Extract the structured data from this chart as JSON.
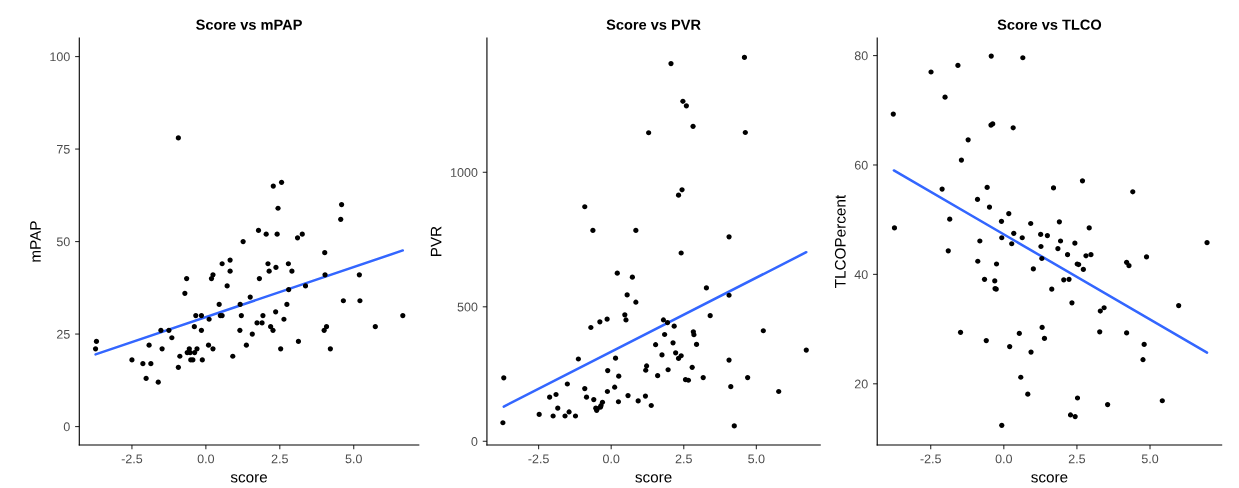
{
  "chart_data": [
    {
      "type": "scatter",
      "title": "Score vs mPAP",
      "xlabel": "score",
      "ylabel": "mPAP",
      "xlim": [
        -4.28,
        7.2
      ],
      "ylim": [
        -5,
        105
      ],
      "xticks": [
        {
          "value": -2.5,
          "label": "-2.5"
        },
        {
          "value": 0,
          "label": "0.0"
        },
        {
          "value": 2.5,
          "label": "2.5"
        },
        {
          "value": 5,
          "label": "5.0"
        }
      ],
      "yticks": [
        0,
        25,
        50,
        75,
        100
      ],
      "grid": false,
      "series": [
        {
          "marker": "circle",
          "color": "#000000",
          "x": [
            -3.73,
            -3.7,
            -2.5,
            -2.13,
            -2.02,
            -1.92,
            -1.86,
            -1.61,
            -1.52,
            -1.48,
            -1.25,
            -1.15,
            -0.93,
            -0.93,
            -0.88,
            -0.71,
            -0.65,
            -0.63,
            -0.56,
            -0.53,
            -0.51,
            -0.44,
            -0.39,
            -0.38,
            -0.34,
            -0.3,
            -0.15,
            -0.15,
            -0.12,
            0.09,
            0.11,
            0.19,
            0.24,
            0.24,
            0.45,
            0.49,
            0.55,
            0.55,
            0.72,
            0.82,
            0.82,
            0.91,
            1.15,
            1.16,
            1.2,
            1.26,
            1.37,
            1.5,
            1.57,
            1.73,
            1.78,
            1.81,
            1.9,
            1.93,
            2.04,
            2.1,
            2.14,
            2.19,
            2.27,
            2.28,
            2.36,
            2.37,
            2.41,
            2.44,
            2.53,
            2.56,
            2.64,
            2.74,
            2.79,
            2.8,
            2.91,
            3.1,
            3.13,
            3.26,
            3.37,
            4.0,
            4.02,
            4.03,
            4.08,
            4.21,
            4.56,
            4.59,
            4.65,
            5.19,
            5.21,
            5.73,
            6.66
          ],
          "values": [
            21,
            23,
            18,
            17,
            13,
            22,
            17,
            12,
            26,
            21,
            26,
            24,
            16,
            78,
            19,
            36,
            40,
            20,
            21,
            20,
            18,
            18,
            27,
            20,
            30,
            21,
            30,
            26,
            18,
            22,
            29,
            40,
            41,
            21,
            33,
            30,
            44,
            30,
            38,
            45,
            42,
            19,
            26,
            33,
            30,
            50,
            22,
            35,
            25,
            28,
            53,
            40,
            28,
            30,
            52,
            44,
            42,
            27,
            26,
            65,
            31,
            43,
            52,
            59,
            21,
            66,
            29,
            33,
            44,
            37,
            42,
            51,
            23,
            52,
            38,
            26,
            47,
            41,
            27,
            21,
            56,
            60,
            34,
            41,
            34,
            27,
            30
          ]
        },
        {
          "type": "line",
          "color": "#3366ff",
          "x": [
            -3.73,
            6.66
          ],
          "values": [
            19.5,
            47.6
          ]
        }
      ]
    },
    {
      "type": "scatter",
      "title": "Score vs PVR",
      "xlabel": "score",
      "ylabel": "PVR",
      "xlim": [
        -4.28,
        7.2
      ],
      "ylim": [
        -14,
        1499
      ],
      "xticks": [
        {
          "value": -2.5,
          "label": "-2.5"
        },
        {
          "value": 0,
          "label": "0.0"
        },
        {
          "value": 2.5,
          "label": "2.5"
        },
        {
          "value": 5,
          "label": "5.0"
        }
      ],
      "yticks": [
        0,
        500,
        1000
      ],
      "grid": false,
      "series": [
        {
          "marker": "circle",
          "color": "#000000",
          "x": [
            -3.73,
            -3.7,
            -2.48,
            -2.12,
            -2.0,
            -1.9,
            -1.84,
            -1.59,
            -1.51,
            -1.45,
            -1.23,
            -1.13,
            -0.91,
            -0.91,
            -0.85,
            -0.7,
            -0.63,
            -0.6,
            -0.53,
            -0.5,
            -0.48,
            -0.39,
            -0.37,
            -0.35,
            -0.3,
            -0.14,
            -0.12,
            -0.13,
            0.12,
            0.15,
            0.21,
            0.26,
            0.25,
            0.47,
            0.51,
            0.55,
            0.58,
            0.73,
            0.85,
            0.85,
            0.93,
            1.18,
            1.19,
            1.22,
            1.29,
            1.38,
            1.53,
            1.6,
            1.75,
            1.8,
            1.84,
            1.94,
            1.96,
            2.06,
            2.13,
            2.17,
            2.22,
            2.32,
            2.32,
            2.41,
            2.41,
            2.44,
            2.47,
            2.56,
            2.59,
            2.66,
            2.79,
            2.82,
            2.83,
            2.85,
            2.94,
            3.17,
            3.28,
            3.41,
            4.06,
            4.06,
            4.06,
            4.12,
            4.24,
            4.59,
            4.62,
            4.7,
            5.24,
            5.77,
            6.72
          ],
          "values": [
            69,
            236,
            100,
            164,
            94,
            174,
            123,
            94,
            213,
            109,
            94,
            306,
            872,
            196,
            164,
            423,
            784,
            155,
            123,
            115,
            121,
            444,
            127,
            133,
            145,
            454,
            263,
            185,
            201,
            309,
            625,
            242,
            147,
            470,
            451,
            544,
            170,
            610,
            784,
            517,
            150,
            168,
            264,
            280,
            1147,
            133,
            359,
            244,
            321,
            451,
            397,
            441,
            266,
            1404,
            366,
            428,
            329,
            308,
            915,
            700,
            318,
            935,
            1264,
            229,
            1247,
            227,
            275,
            1171,
            407,
            396,
            360,
            237,
            570,
            467,
            760,
            543,
            302,
            203,
            57,
            1427,
            1148,
            237,
            411,
            185,
            339
          ]
        },
        {
          "type": "line",
          "color": "#3366ff",
          "x": [
            -3.7,
            6.72
          ],
          "values": [
            129,
            703
          ]
        }
      ]
    },
    {
      "type": "scatter",
      "title": "Score vs TLCO",
      "xlabel": "score",
      "ylabel": "TLCOPercent",
      "xlim": [
        -4.33,
        7.45
      ],
      "ylim": [
        8.8,
        83.2
      ],
      "xticks": [
        {
          "value": -2.5,
          "label": "-2.5"
        },
        {
          "value": 0,
          "label": "0.0"
        },
        {
          "value": 2.5,
          "label": "2.5"
        },
        {
          "value": 5,
          "label": "5.0"
        }
      ],
      "yticks": [
        20,
        40,
        60,
        80
      ],
      "grid": false,
      "series": [
        {
          "marker": "circle",
          "color": "#000000",
          "x": [
            -3.78,
            -3.74,
            -2.49,
            -2.11,
            -2.01,
            -1.9,
            -1.85,
            -1.57,
            -1.48,
            -1.45,
            -1.22,
            -0.9,
            -0.89,
            -0.82,
            -0.66,
            -0.6,
            -0.57,
            -0.49,
            -0.44,
            -0.43,
            -0.38,
            -0.31,
            -0.3,
            -0.26,
            -0.25,
            -0.08,
            -0.07,
            -0.07,
            0.17,
            0.2,
            0.27,
            0.32,
            0.34,
            0.53,
            0.58,
            0.63,
            0.65,
            0.82,
            0.92,
            0.93,
            1.01,
            1.26,
            1.27,
            1.3,
            1.31,
            1.39,
            1.49,
            1.64,
            1.7,
            1.85,
            1.9,
            1.94,
            2.05,
            2.18,
            2.23,
            2.28,
            2.33,
            2.43,
            2.44,
            2.51,
            2.52,
            2.56,
            2.69,
            2.72,
            2.81,
            2.92,
            2.98,
            3.28,
            3.3,
            3.43,
            3.55,
            4.2,
            4.2,
            4.28,
            4.41,
            4.76,
            4.8,
            4.88,
            5.42,
            5.98,
            6.95
          ],
          "values": [
            69.3,
            48.5,
            77.0,
            55.6,
            72.4,
            44.3,
            50.1,
            78.2,
            29.4,
            60.9,
            64.6,
            53.7,
            42.4,
            46.1,
            39.1,
            27.9,
            55.9,
            52.3,
            67.3,
            79.9,
            67.5,
            38.8,
            37.4,
            37.3,
            41.9,
            49.7,
            46.7,
            12.4,
            51.1,
            26.8,
            45.6,
            66.8,
            47.5,
            29.2,
            21.2,
            46.7,
            79.6,
            18.1,
            49.3,
            25.8,
            41.0,
            47.3,
            45.1,
            42.9,
            30.3,
            28.3,
            47.1,
            37.3,
            55.8,
            44.7,
            49.6,
            46.1,
            39.0,
            43.6,
            39.1,
            14.3,
            34.8,
            45.7,
            14.0,
            41.9,
            17.4,
            41.8,
            57.1,
            40.9,
            43.4,
            48.5,
            43.6,
            29.5,
            33.3,
            33.9,
            16.2,
            29.3,
            42.2,
            41.6,
            55.1,
            24.4,
            27.2,
            43.2,
            16.9,
            34.3,
            45.8
          ]
        },
        {
          "type": "line",
          "color": "#3366ff",
          "x": [
            -3.76,
            6.95
          ],
          "values": [
            59.0,
            25.7
          ]
        }
      ]
    }
  ]
}
